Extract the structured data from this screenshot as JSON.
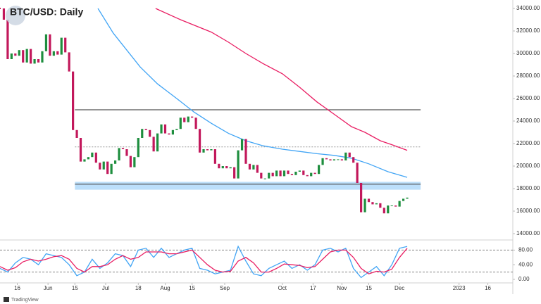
{
  "chart_data": {
    "type": "candlestick",
    "title": "BTC/USD: Daily",
    "watermark": "TradingView",
    "up_color": "#1e8e3e",
    "down_color": "#c2185b",
    "x": [
      6,
      8,
      10,
      12,
      14,
      16,
      18,
      20,
      22,
      24,
      26,
      28,
      30,
      32,
      34,
      36,
      38,
      40,
      42,
      44,
      46,
      48,
      50,
      52,
      54,
      56,
      58,
      60,
      62,
      64,
      66,
      68,
      70,
      72,
      74,
      76,
      78,
      80,
      82,
      84,
      86,
      88,
      90,
      92,
      94,
      96,
      98,
      100,
      102,
      104,
      106,
      108,
      110,
      112,
      114,
      116,
      118,
      120,
      122,
      124,
      126,
      128,
      130,
      132,
      134,
      136,
      138,
      140,
      142,
      144,
      146,
      148,
      150,
      152,
      154,
      156,
      158,
      160,
      162,
      164,
      166,
      168,
      170,
      172,
      174,
      176,
      178,
      180,
      182,
      184,
      186,
      188,
      190,
      192,
      194,
      196,
      198,
      200,
      202,
      204,
      206,
      208,
      210,
      212,
      214,
      216,
      218
    ],
    "close": [
      34000,
      33000,
      29500,
      30000,
      29800,
      30300,
      29200,
      30400,
      29100,
      29500,
      29200,
      30200,
      31700,
      29800,
      30200,
      29900,
      31400,
      30100,
      28400,
      23200,
      22500,
      20400,
      20600,
      20800,
      21200,
      20300,
      19700,
      20400,
      19300,
      20200,
      20500,
      21600,
      21500,
      20900,
      19900,
      20800,
      22500,
      23300,
      23200,
      22600,
      21300,
      22900,
      23700,
      22900,
      22800,
      23200,
      23300,
      24300,
      23900,
      24400,
      24300,
      23300,
      21200,
      21500,
      21400,
      21500,
      20200,
      19800,
      20000,
      19800,
      19900,
      18900,
      21400,
      22400,
      20200,
      19700,
      20100,
      19400,
      18900,
      18900,
      19400,
      19100,
      19600,
      19100,
      19600,
      19300,
      19200,
      19500,
      19600,
      19200,
      19100,
      19400,
      19300,
      20100,
      20700,
      20600,
      20500,
      20600,
      20600,
      20500,
      21200,
      20800,
      20300,
      18500,
      15900,
      17100,
      16800,
      16600,
      16700,
      16300,
      15800,
      16500,
      16500,
      16400,
      16900,
      17100,
      17200
    ],
    "overlays": [
      {
        "color": "#42a5f5",
        "x": [
          57,
          65,
          72,
          79,
          88,
          98,
          107,
          116,
          125,
          134,
          143,
          153,
          162,
          171,
          180,
          189,
          198,
          208,
          218
        ],
        "values": [
          34000,
          31800,
          30300,
          28800,
          27300,
          26000,
          24800,
          23800,
          22900,
          22250,
          21800,
          21500,
          21300,
          21100,
          20950,
          20700,
          20200,
          19500,
          19000
        ]
      },
      {
        "color": "#e91e63",
        "x": [
          87,
          100,
          116,
          125,
          134,
          143,
          153,
          162,
          171,
          180,
          189,
          196,
          204,
          210,
          218
        ],
        "values": [
          34000,
          33000,
          31900,
          31000,
          30000,
          29100,
          28200,
          27000,
          25700,
          24600,
          23500,
          23000,
          22250,
          21900,
          21400
        ]
      }
    ],
    "levels": {
      "x": [
        45,
        225
      ],
      "resistance": 25000,
      "dashed": 21700,
      "support": 18400,
      "support_zone": [
        17900,
        18600
      ]
    },
    "xlim": [
      6,
      273
    ],
    "xticks": [
      {
        "value": 15,
        "label": "16"
      },
      {
        "value": 31,
        "label": "Jun"
      },
      {
        "value": 45,
        "label": "15"
      },
      {
        "value": 61,
        "label": "Jul"
      },
      {
        "value": 78,
        "label": "18"
      },
      {
        "value": 92,
        "label": "Aug"
      },
      {
        "value": 106,
        "label": "15"
      },
      {
        "value": 123,
        "label": "Sep"
      },
      {
        "value": 153,
        "label": "Oct"
      },
      {
        "value": 169,
        "label": "17"
      },
      {
        "value": 184,
        "label": "Nov"
      },
      {
        "value": 198,
        "label": "15"
      },
      {
        "value": 214,
        "label": "Dec"
      },
      {
        "value": 245,
        "label": "2023"
      },
      {
        "value": 260,
        "label": "16"
      }
    ],
    "ylim": [
      14000,
      34000
    ],
    "yticks": [
      {
        "value": 14000,
        "label": "14000.00"
      },
      {
        "value": 16000,
        "label": "16000.00"
      },
      {
        "value": 18000,
        "label": "18000.00"
      },
      {
        "value": 20000,
        "label": "20000.00"
      },
      {
        "value": 22000,
        "label": "22000.00"
      },
      {
        "value": 24000,
        "label": "24000.00"
      },
      {
        "value": 26000,
        "label": "26000.00"
      },
      {
        "value": 28000,
        "label": "28000.00"
      },
      {
        "value": 30000,
        "label": "30000.00"
      },
      {
        "value": 32000,
        "label": "32000.00"
      },
      {
        "value": 34000,
        "label": "34000.00"
      }
    ],
    "oscillator": {
      "ylim": [
        0,
        100
      ],
      "yticks": [
        {
          "value": 0,
          "label": "0.00"
        },
        {
          "value": 40,
          "label": "40.00"
        },
        {
          "value": 80,
          "label": "80.00"
        }
      ],
      "levels": [
        80,
        20
      ],
      "x": [
        6,
        10,
        14,
        18,
        22,
        26,
        30,
        34,
        38,
        42,
        46,
        50,
        54,
        58,
        62,
        66,
        70,
        74,
        78,
        82,
        86,
        90,
        94,
        98,
        102,
        106,
        110,
        114,
        118,
        122,
        126,
        130,
        134,
        138,
        142,
        146,
        150,
        154,
        158,
        162,
        166,
        170,
        174,
        178,
        182,
        186,
        190,
        194,
        198,
        202,
        206,
        210,
        214,
        218
      ],
      "series": [
        {
          "color": "#42a5f5",
          "values": [
            30,
            20,
            45,
            60,
            55,
            40,
            70,
            65,
            60,
            40,
            10,
            20,
            55,
            30,
            45,
            70,
            65,
            35,
            80,
            85,
            60,
            85,
            60,
            70,
            80,
            85,
            30,
            25,
            15,
            20,
            25,
            90,
            50,
            15,
            10,
            30,
            40,
            50,
            30,
            40,
            25,
            40,
            80,
            85,
            75,
            85,
            30,
            5,
            20,
            35,
            10,
            40,
            85,
            90
          ]
        },
        {
          "color": "#e91e63",
          "values": [
            35,
            25,
            32,
            48,
            55,
            50,
            55,
            62,
            65,
            55,
            30,
            20,
            35,
            35,
            40,
            55,
            65,
            55,
            60,
            75,
            75,
            75,
            70,
            70,
            75,
            80,
            60,
            40,
            25,
            20,
            22,
            50,
            60,
            45,
            20,
            20,
            30,
            42,
            40,
            38,
            32,
            35,
            55,
            75,
            80,
            80,
            60,
            30,
            15,
            22,
            20,
            28,
            60,
            85
          ]
        }
      ]
    }
  }
}
